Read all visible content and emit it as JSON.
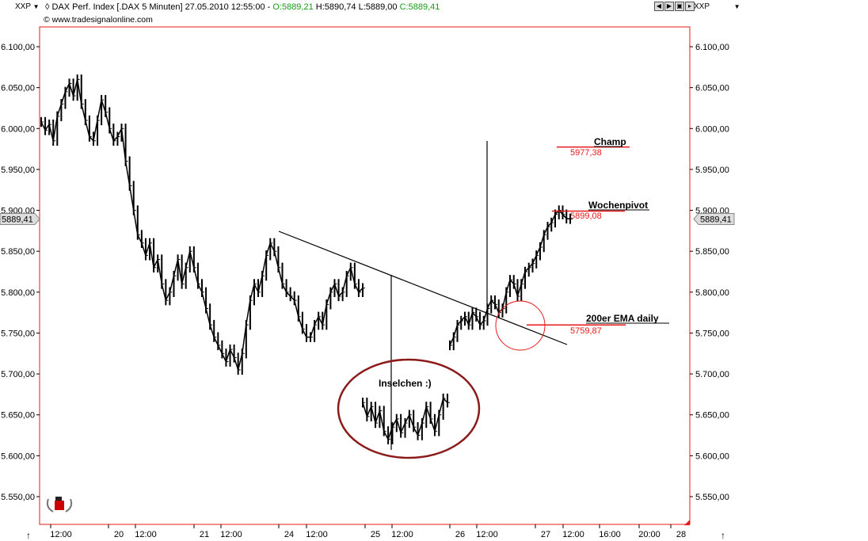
{
  "header": {
    "symbol_left": "XXP",
    "symbol_right": "XXP",
    "instrument": "DAX Perf. Index [.DAX  5 Minuten] 27.05.2010 12:55:00 - ",
    "open": "O:5889,21",
    "hlc": " H:5890,74 L:5889,00 ",
    "close": "C:5889,41",
    "copyright": "© www.tradesignalonline.com",
    "nav_icons": [
      "arrow-left-icon",
      "arrow-right-icon",
      "fit-icon",
      "zoom-icon"
    ]
  },
  "colors": {
    "price_bars": "#000000",
    "annotation_red": "#e8191a",
    "ellipse_dark_red": "#8b1a1a",
    "axis_border": "#e8191a"
  },
  "chart_data": {
    "type": "line",
    "title": "",
    "xlabel": "",
    "ylabel": "",
    "ylim": [
      5510,
      6140
    ],
    "y_ticks": [
      "5.550,00",
      "5.600,00",
      "5.650,00",
      "5.700,00",
      "5.750,00",
      "5.800,00",
      "5.850,00",
      "5.900,00",
      "5.950,00",
      "6.000,00",
      "6.050,00",
      "6.100,00"
    ],
    "x_tick_labels": [
      "12:00",
      "20",
      "12:00",
      "21",
      "12:00",
      "24",
      "12:00",
      "25",
      "12:00",
      "26",
      "12:00",
      "27",
      "12:00",
      "16:00",
      "20:00",
      "28"
    ],
    "last_price_label": "5889,41",
    "series": [
      {
        "segment": "19.05-25.05",
        "values": [
          6008,
          5998,
          6005,
          5985,
          6015,
          6030,
          6045,
          6055,
          6040,
          6060,
          6030,
          6010,
          5990,
          5985,
          6010,
          6035,
          6020,
          6000,
          5985,
          5990,
          6000,
          5960,
          5930,
          5900,
          5870,
          5860,
          5845,
          5860,
          5830,
          5840,
          5810,
          5790,
          5800,
          5820,
          5840,
          5810,
          5830,
          5850,
          5830,
          5810,
          5800,
          5780,
          5760,
          5745,
          5735,
          5725,
          5715,
          5730,
          5720,
          5705,
          5725,
          5760,
          5790,
          5810,
          5800,
          5820,
          5845,
          5860,
          5850,
          5830,
          5810,
          5800,
          5795,
          5790,
          5770,
          5755,
          5745,
          5745,
          5760,
          5770,
          5760,
          5785,
          5800,
          5810,
          5795,
          5800,
          5820,
          5830,
          5810,
          5800,
          5805
        ]
      },
      {
        "segment": "25.05-27.05",
        "values": [
          5735,
          5745,
          5760,
          5765,
          5770,
          5760,
          5775,
          5770,
          5760,
          5765,
          5780,
          5790,
          5785,
          5775,
          5780,
          5800,
          5815,
          5810,
          5795,
          5810,
          5825,
          5830,
          5835,
          5845,
          5855,
          5870,
          5880,
          5885,
          5895,
          5900,
          5895,
          5890,
          5889.41
        ]
      },
      {
        "segment": "Inselchen",
        "values": [
          5665,
          5648,
          5660,
          5640,
          5655,
          5630,
          5620,
          5635,
          5645,
          5628,
          5640,
          5650,
          5635,
          5625,
          5640,
          5660,
          5645,
          5630,
          5650,
          5670,
          5665
        ]
      }
    ],
    "levels": [
      {
        "name": "Champ",
        "value": 5977.38,
        "label": "5977,38"
      },
      {
        "name": "Wochenpivot",
        "value": 5899.08,
        "label": "5899,08"
      },
      {
        "name": "200er EMA daily",
        "value": 5759.87,
        "label": "5759,87"
      }
    ],
    "annotations": [
      "Inselchen :)"
    ]
  }
}
